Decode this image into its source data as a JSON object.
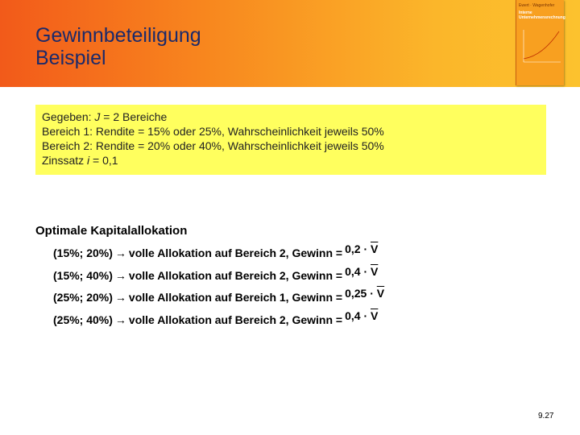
{
  "header": {
    "title_lines": [
      "Gewinnbeteiligung",
      "Beispiel"
    ],
    "cover": {
      "author": "Ewert · Wagenhofer",
      "title_lines": [
        "Interne",
        "Unternehmensrechnung"
      ]
    }
  },
  "given": {
    "lines": [
      [
        "Gegeben: ",
        "J",
        " = 2 Bereiche"
      ],
      [
        "Bereich 1: Rendite = 15% oder 25%, Wahrscheinlichkeit jeweils 50%"
      ],
      [
        "Bereich 2: Rendite = 20% oder 40%, Wahrscheinlichkeit jeweils 50%"
      ],
      [
        "Zinssatz ",
        "i",
        " = 0,1"
      ]
    ]
  },
  "allocation": {
    "heading": "Optimale Kapitalallokation",
    "rows": [
      {
        "pair": "(15%; 20%)",
        "text": "volle Allokation auf Bereich 2, Gewinn =",
        "factor": "0,2 ·",
        "var": "V"
      },
      {
        "pair": "(15%; 40%)",
        "text": "volle Allokation auf Bereich 2, Gewinn =",
        "factor": "0,4 ·",
        "var": "V"
      },
      {
        "pair": "(25%; 20%)",
        "text": "volle Allokation auf Bereich 1, Gewinn =",
        "factor": "0,25 ·",
        "var": "V"
      },
      {
        "pair": "(25%; 40%)",
        "text": "volle Allokation auf Bereich 2, Gewinn =",
        "factor": "0,4 ·",
        "var": "V"
      }
    ]
  },
  "page_number": "9.27"
}
